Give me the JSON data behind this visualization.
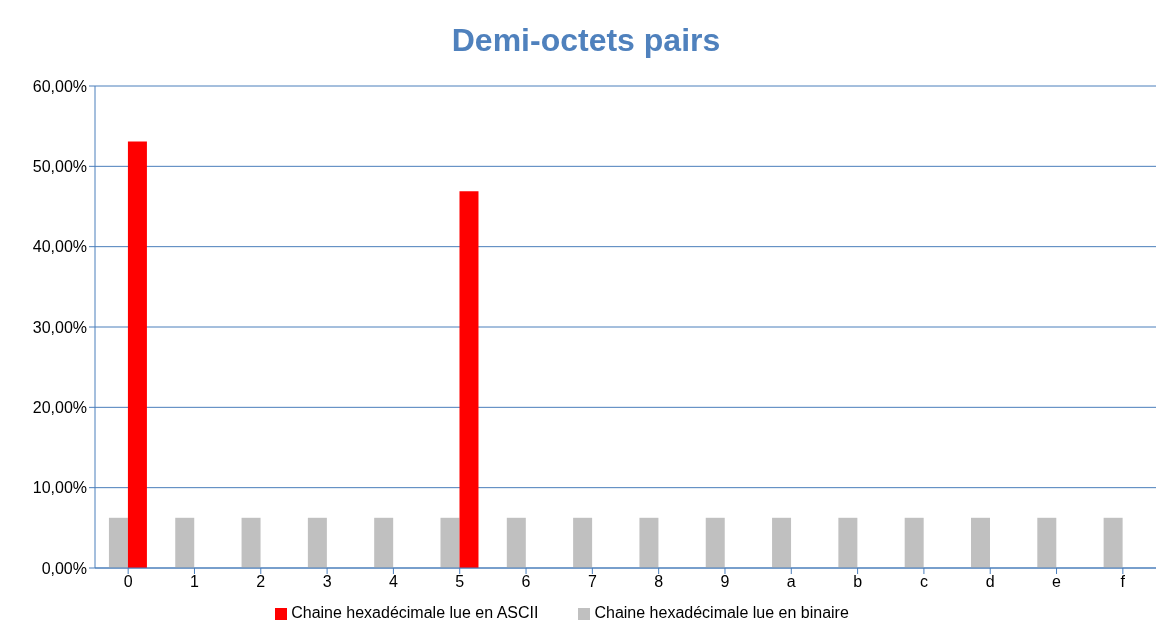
{
  "chart_data": {
    "type": "bar",
    "title": "Demi-octets pairs",
    "categories": [
      "0",
      "1",
      "2",
      "3",
      "4",
      "5",
      "6",
      "7",
      "8",
      "9",
      "a",
      "b",
      "c",
      "d",
      "e",
      "f"
    ],
    "series": [
      {
        "name": "Chaine hexadécimale lue en binaire",
        "color": "#c0c0c0",
        "values": [
          6.25,
          6.25,
          6.25,
          6.25,
          6.25,
          6.25,
          6.25,
          6.25,
          6.25,
          6.25,
          6.25,
          6.25,
          6.25,
          6.25,
          6.25,
          6.25
        ]
      },
      {
        "name": "Chaine hexadécimale lue en ASCII",
        "color": "#ff0000",
        "values": [
          53.1,
          0,
          0,
          0,
          0,
          46.9,
          0,
          0,
          0,
          0,
          0,
          0,
          0,
          0,
          0,
          0
        ]
      }
    ],
    "ylim": [
      0,
      60
    ],
    "yticks": [
      {
        "value": 0,
        "label": "0,00%"
      },
      {
        "value": 10,
        "label": "10,00%"
      },
      {
        "value": 20,
        "label": "20,00%"
      },
      {
        "value": 30,
        "label": "30,00%"
      },
      {
        "value": 40,
        "label": "40,00%"
      },
      {
        "value": 50,
        "label": "50,00%"
      },
      {
        "value": 60,
        "label": "60,00%"
      }
    ],
    "grid": "y",
    "legend": "bottom"
  }
}
